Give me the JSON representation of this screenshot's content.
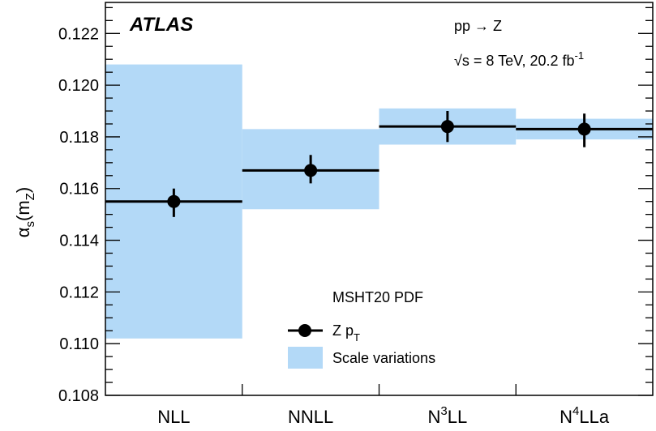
{
  "chart_data": {
    "type": "scatter",
    "categories": [
      "NLL",
      "NNLL",
      "N3LL",
      "N4LLa"
    ],
    "category_labels": [
      {
        "base": "NLL",
        "sup": ""
      },
      {
        "base": "NNLL",
        "sup": ""
      },
      {
        "base": "N",
        "sup": "3",
        "rest": "LL"
      },
      {
        "base": "N",
        "sup": "4",
        "rest": "LLa"
      }
    ],
    "series": [
      {
        "name": "Z p_T",
        "values": [
          0.1155,
          0.1167,
          0.1184,
          0.1183
        ],
        "err_low": [
          0.1149,
          0.1162,
          0.1178,
          0.1176
        ],
        "err_high": [
          0.116,
          0.1173,
          0.119,
          0.1189
        ]
      },
      {
        "name": "Scale variations",
        "band_low": [
          0.1102,
          0.1152,
          0.1177,
          0.1179
        ],
        "band_high": [
          0.1208,
          0.1183,
          0.1191,
          0.1187
        ]
      }
    ],
    "ylim": [
      0.108,
      0.1232
    ],
    "yticks": [
      "0.108",
      "0.110",
      "0.112",
      "0.114",
      "0.116",
      "0.118",
      "0.120",
      "0.122"
    ],
    "ylabel": {
      "alpha": "α",
      "sub1": "s",
      "paren_open": "(m",
      "sub2": "Z",
      "paren_close": ")"
    },
    "annotations": {
      "experiment": "ATLAS",
      "process": "pp → Z",
      "energy_main": "√s = 8 TeV, 20.2 fb",
      "energy_sup": "-1",
      "pdf": "MSHT20 PDF"
    },
    "legend": {
      "placement": "bottom-center",
      "point_label_base": "Z p",
      "point_label_sub": "T",
      "band_label": "Scale variations"
    },
    "colors": {
      "band": "#b3d9f7",
      "points": "#000000"
    },
    "grid": false
  }
}
